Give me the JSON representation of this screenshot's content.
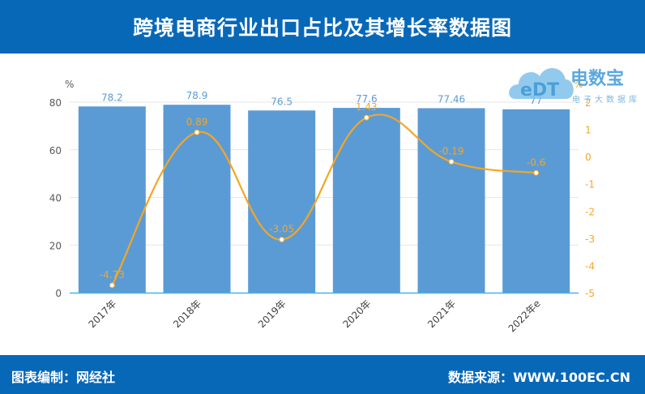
{
  "header": {
    "title": "跨境电商行业出口占比及其增长率数据图"
  },
  "footer": {
    "left": "图表编制：网经社",
    "right": "数据来源：WWW.100EC.CN"
  },
  "logo": {
    "brand": "电数宝",
    "subtitle": "电子大数据库",
    "mark": "eDT"
  },
  "colors": {
    "header_bg": "#0868b8",
    "bar": "#5b9bd5",
    "line": "#f5a623",
    "bar_label": "#5b9bd5",
    "axis_right": "#f5a623"
  },
  "chart_data": {
    "type": "bar+line",
    "title": "跨境电商行业出口占比及其增长率数据图",
    "categories": [
      "2017年",
      "2018年",
      "2019年",
      "2020年",
      "2021年",
      "2022年e"
    ],
    "series": [
      {
        "name": "出口占比",
        "type": "bar",
        "axis": "left",
        "unit": "%",
        "values": [
          78.2,
          78.9,
          76.5,
          77.6,
          77.46,
          77
        ]
      },
      {
        "name": "增长率",
        "type": "line",
        "axis": "right",
        "unit": "%",
        "values": [
          -4.73,
          0.89,
          -3.05,
          1.43,
          -0.19,
          -0.6
        ]
      }
    ],
    "left_axis": {
      "label": "%",
      "ylim": [
        0,
        80
      ],
      "ticks": [
        0,
        20,
        40,
        60,
        80
      ]
    },
    "right_axis": {
      "label": "%",
      "ylim": [
        -5,
        2
      ],
      "ticks": [
        -5,
        -4,
        -3,
        -2,
        -1,
        0,
        1,
        2
      ]
    },
    "grid": true,
    "legend": "none"
  }
}
